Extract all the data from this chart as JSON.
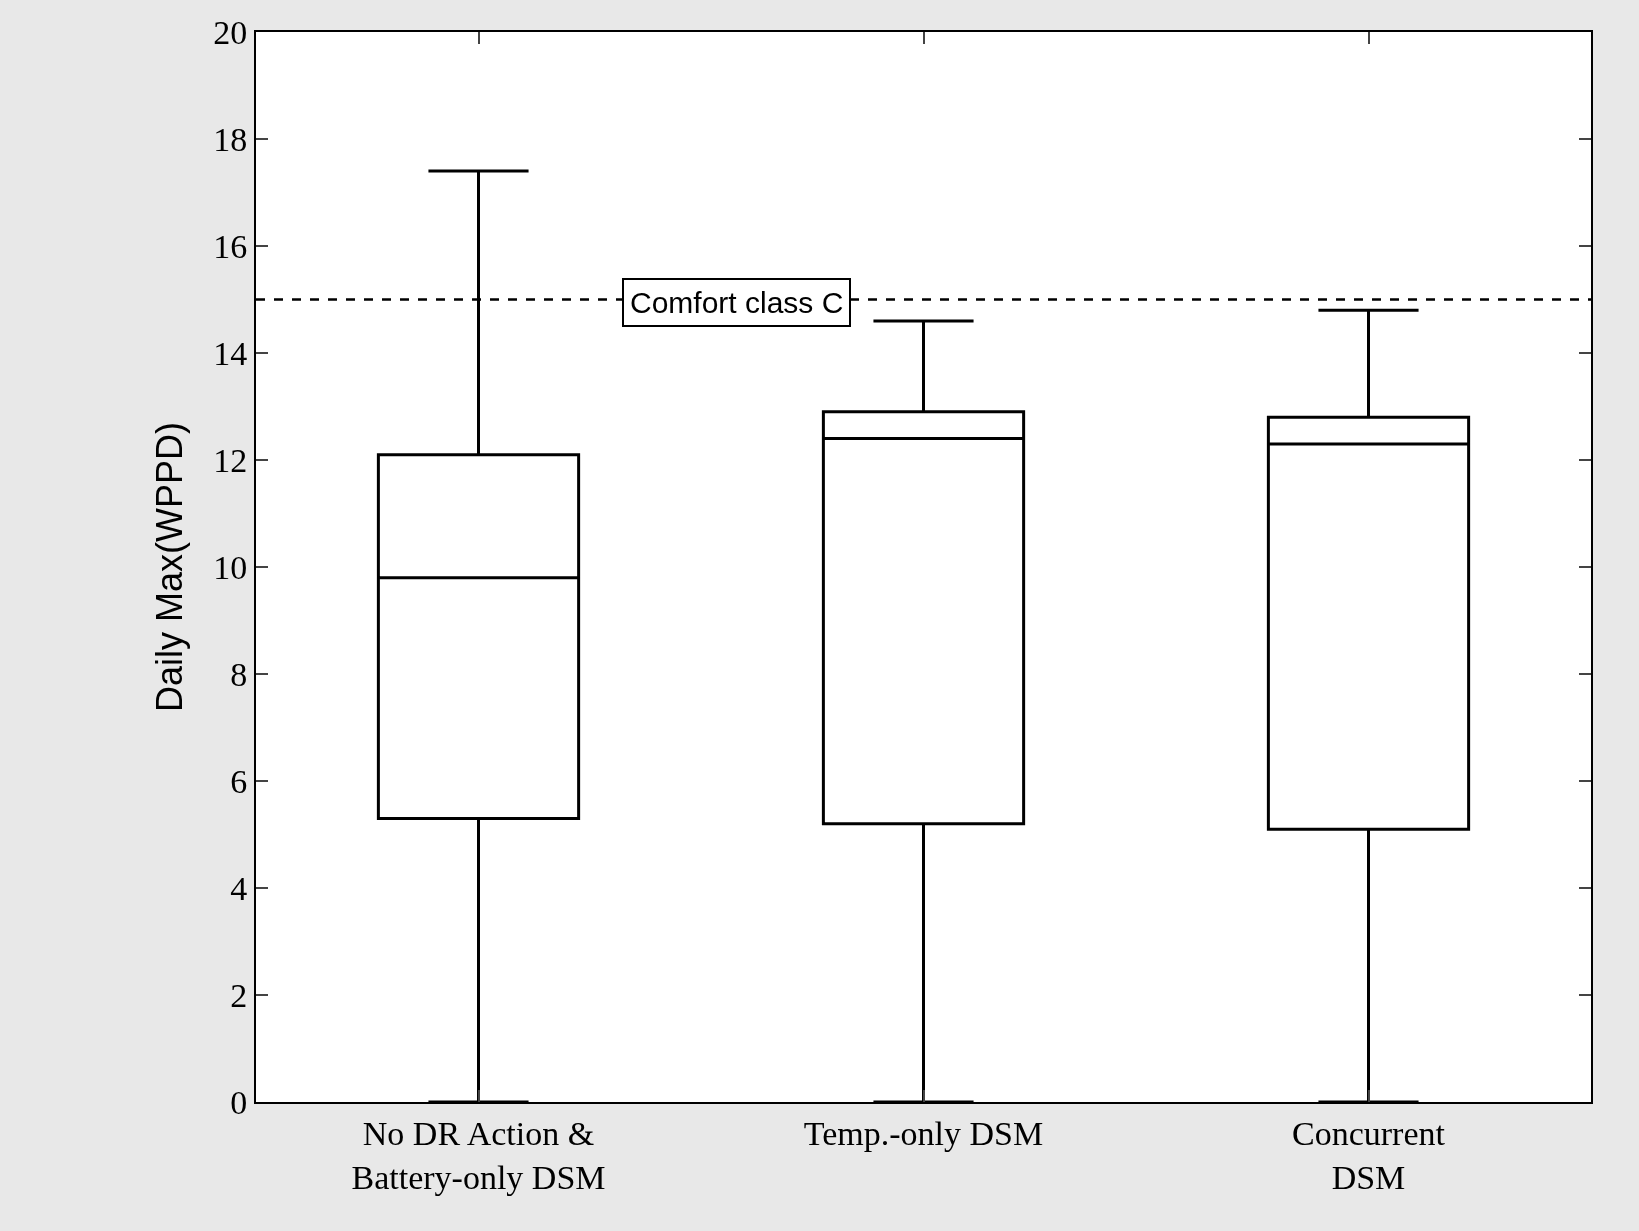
{
  "chart_data": {
    "type": "box",
    "ylabel": "Daily Max(WPPD)",
    "categories": [
      "No DR Action &\nBattery-only DSM",
      "Temp.-only DSM",
      "Concurrent\nDSM"
    ],
    "boxes": [
      {
        "low": 0,
        "q1": 5.3,
        "median": 9.8,
        "q3": 12.1,
        "high": 17.4
      },
      {
        "low": 0,
        "q1": 5.2,
        "median": 12.4,
        "q3": 12.9,
        "high": 14.6
      },
      {
        "low": 0,
        "q1": 5.1,
        "median": 12.3,
        "q3": 12.8,
        "high": 14.8
      }
    ],
    "color": "#000000",
    "ylim": [
      0,
      20
    ],
    "yticks": [
      0,
      2,
      4,
      6,
      8,
      10,
      12,
      14,
      16,
      18,
      20
    ],
    "ref_lines": [
      {
        "axis": "y",
        "value": 15,
        "label": "Comfort class C",
        "color": "#000000",
        "line_style": "dashed"
      }
    ],
    "legend": false
  }
}
